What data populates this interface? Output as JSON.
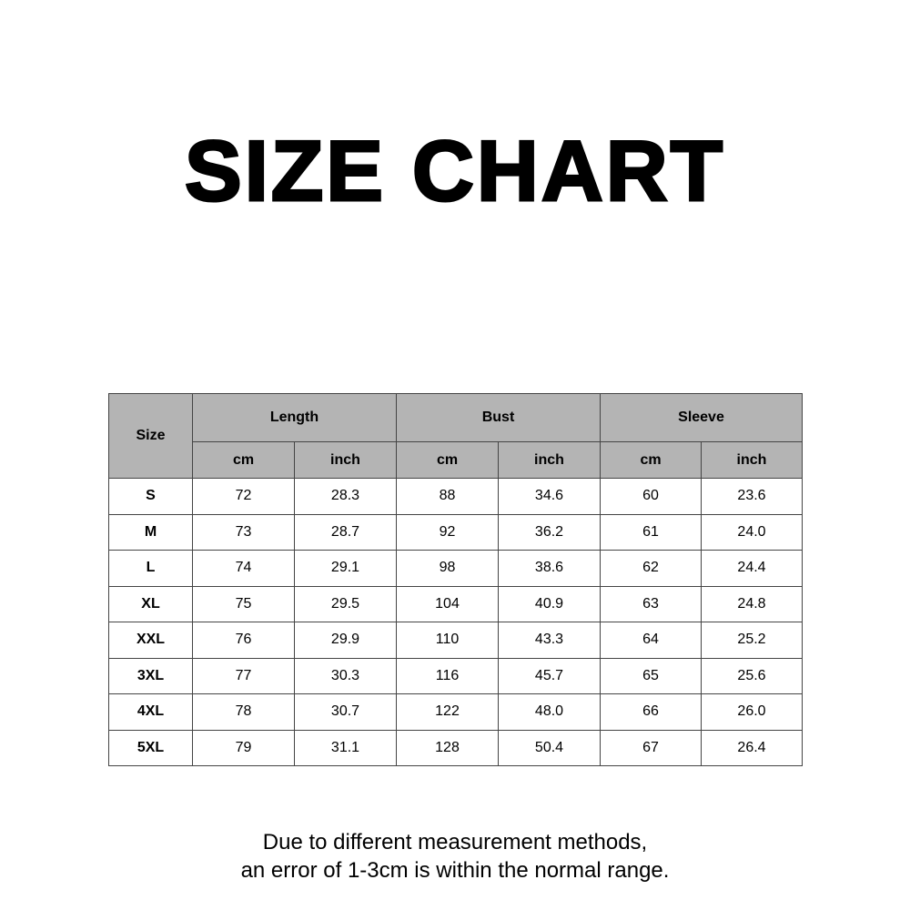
{
  "title": "SIZE CHART",
  "table": {
    "size_header": "Size",
    "groups": [
      "Length",
      "Bust",
      "Sleeve"
    ],
    "units": [
      "cm",
      "inch",
      "cm",
      "inch",
      "cm",
      "inch"
    ],
    "rows": [
      [
        "S",
        "72",
        "28.3",
        "88",
        "34.6",
        "60",
        "23.6"
      ],
      [
        "M",
        "73",
        "28.7",
        "92",
        "36.2",
        "61",
        "24.0"
      ],
      [
        "L",
        "74",
        "29.1",
        "98",
        "38.6",
        "62",
        "24.4"
      ],
      [
        "XL",
        "75",
        "29.5",
        "104",
        "40.9",
        "63",
        "24.8"
      ],
      [
        "XXL",
        "76",
        "29.9",
        "110",
        "43.3",
        "64",
        "25.2"
      ],
      [
        "3XL",
        "77",
        "30.3",
        "116",
        "45.7",
        "65",
        "25.6"
      ],
      [
        "4XL",
        "78",
        "30.7",
        "122",
        "48.0",
        "66",
        "26.0"
      ],
      [
        "5XL",
        "79",
        "31.1",
        "128",
        "50.4",
        "67",
        "26.4"
      ]
    ],
    "header_color": "#b4b4b4"
  },
  "note": {
    "line1": "Due to different measurement methods,",
    "line2": "an error of 1-3cm is within the normal range."
  }
}
